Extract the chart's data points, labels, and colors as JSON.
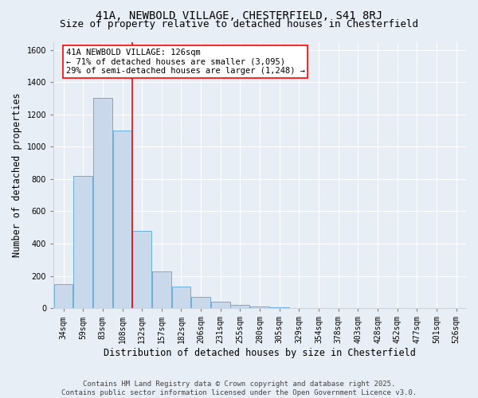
{
  "title1": "41A, NEWBOLD VILLAGE, CHESTERFIELD, S41 8RJ",
  "title2": "Size of property relative to detached houses in Chesterfield",
  "xlabel": "Distribution of detached houses by size in Chesterfield",
  "ylabel": "Number of detached properties",
  "bar_categories": [
    "34sqm",
    "59sqm",
    "83sqm",
    "108sqm",
    "132sqm",
    "157sqm",
    "182sqm",
    "206sqm",
    "231sqm",
    "255sqm",
    "280sqm",
    "305sqm",
    "329sqm",
    "354sqm",
    "378sqm",
    "403sqm",
    "428sqm",
    "452sqm",
    "477sqm",
    "501sqm",
    "526sqm"
  ],
  "bar_values": [
    150,
    820,
    1300,
    1100,
    480,
    230,
    135,
    70,
    40,
    22,
    12,
    5,
    3,
    2,
    1,
    0,
    0,
    0,
    0,
    0,
    0
  ],
  "bar_color": "#c9d9eb",
  "bar_edge_color": "#6aafd6",
  "vline_index": 3.5,
  "vline_color": "red",
  "annotation_text": "41A NEWBOLD VILLAGE: 126sqm\n← 71% of detached houses are smaller (3,095)\n29% of semi-detached houses are larger (1,248) →",
  "annotation_box_color": "white",
  "annotation_box_edge_color": "red",
  "ylim": [
    0,
    1650
  ],
  "yticks": [
    0,
    200,
    400,
    600,
    800,
    1000,
    1200,
    1400,
    1600
  ],
  "bg_color": "#e8eef5",
  "plot_bg_color": "#e8eef5",
  "footer": "Contains HM Land Registry data © Crown copyright and database right 2025.\nContains public sector information licensed under the Open Government Licence v3.0.",
  "title1_fontsize": 10,
  "title2_fontsize": 9,
  "xlabel_fontsize": 8.5,
  "ylabel_fontsize": 8.5,
  "tick_fontsize": 7,
  "annot_fontsize": 7.5,
  "footer_fontsize": 6.5
}
